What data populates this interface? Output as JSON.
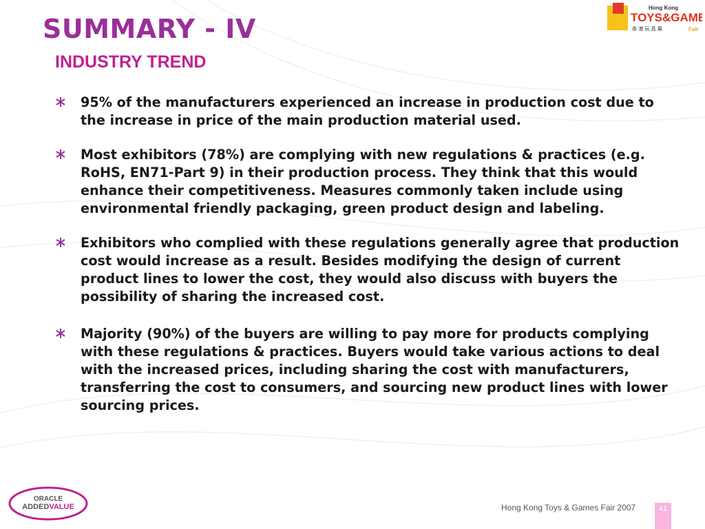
{
  "header": {
    "title": "SUMMARY - IV",
    "subtitle": "INDUSTRY TREND"
  },
  "logo_top": {
    "line1": "Hong Kong",
    "line2": "TOYS&GAMES",
    "line3": "香 港 玩 具 展",
    "line4": "Fair"
  },
  "bullets": [
    "95% of the manufacturers experienced an increase in production cost due to the increase in price of the main production material used.",
    "Most exhibitors (78%) are complying with new regulations & practices (e.g. RoHS, EN71-Part 9) in their production process. They think that this would enhance their competitiveness. Measures commonly taken include using environmental friendly packaging, green product design and labeling.",
    "Exhibitors who complied with these regulations generally agree that production cost would increase as a result.  Besides modifying the design of current product lines to lower the cost, they would also discuss with buyers the possibility of sharing the increased cost.",
    "Majority (90%) of the buyers are willing to pay more for products complying with these regulations & practices.  Buyers would take various actions to deal with the increased prices, including sharing the cost with manufacturers, transferring the cost to consumers, and sourcing new product lines with lower sourcing prices."
  ],
  "logo_bottom": {
    "line1": "ORACLE",
    "part1": "ADDED",
    "part2": "VALUE"
  },
  "footer": {
    "text": "Hong Kong Toys & Games Fair 2007",
    "page": "41"
  }
}
